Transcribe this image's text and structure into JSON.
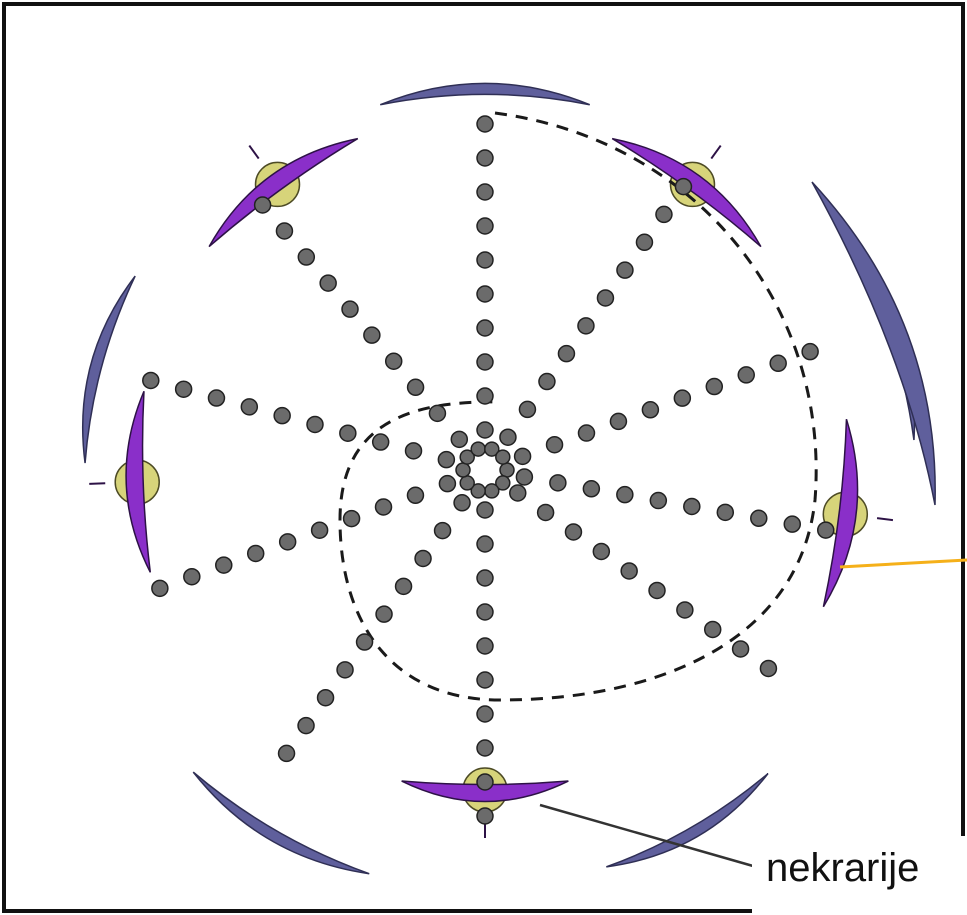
{
  "diagram": {
    "label": "nekrarije",
    "colors": {
      "sepal": "#5f5f9c",
      "petal": "#8a2fc9",
      "nectary": "#d7d47a",
      "stamen": "#6b6b6b",
      "dashed_whorl": "#1a1a1a",
      "pointer_orange": "#f5b01a",
      "pointer_dark": "#333333",
      "frame": "#111111"
    },
    "icons": [
      "floral-diagram"
    ]
  }
}
